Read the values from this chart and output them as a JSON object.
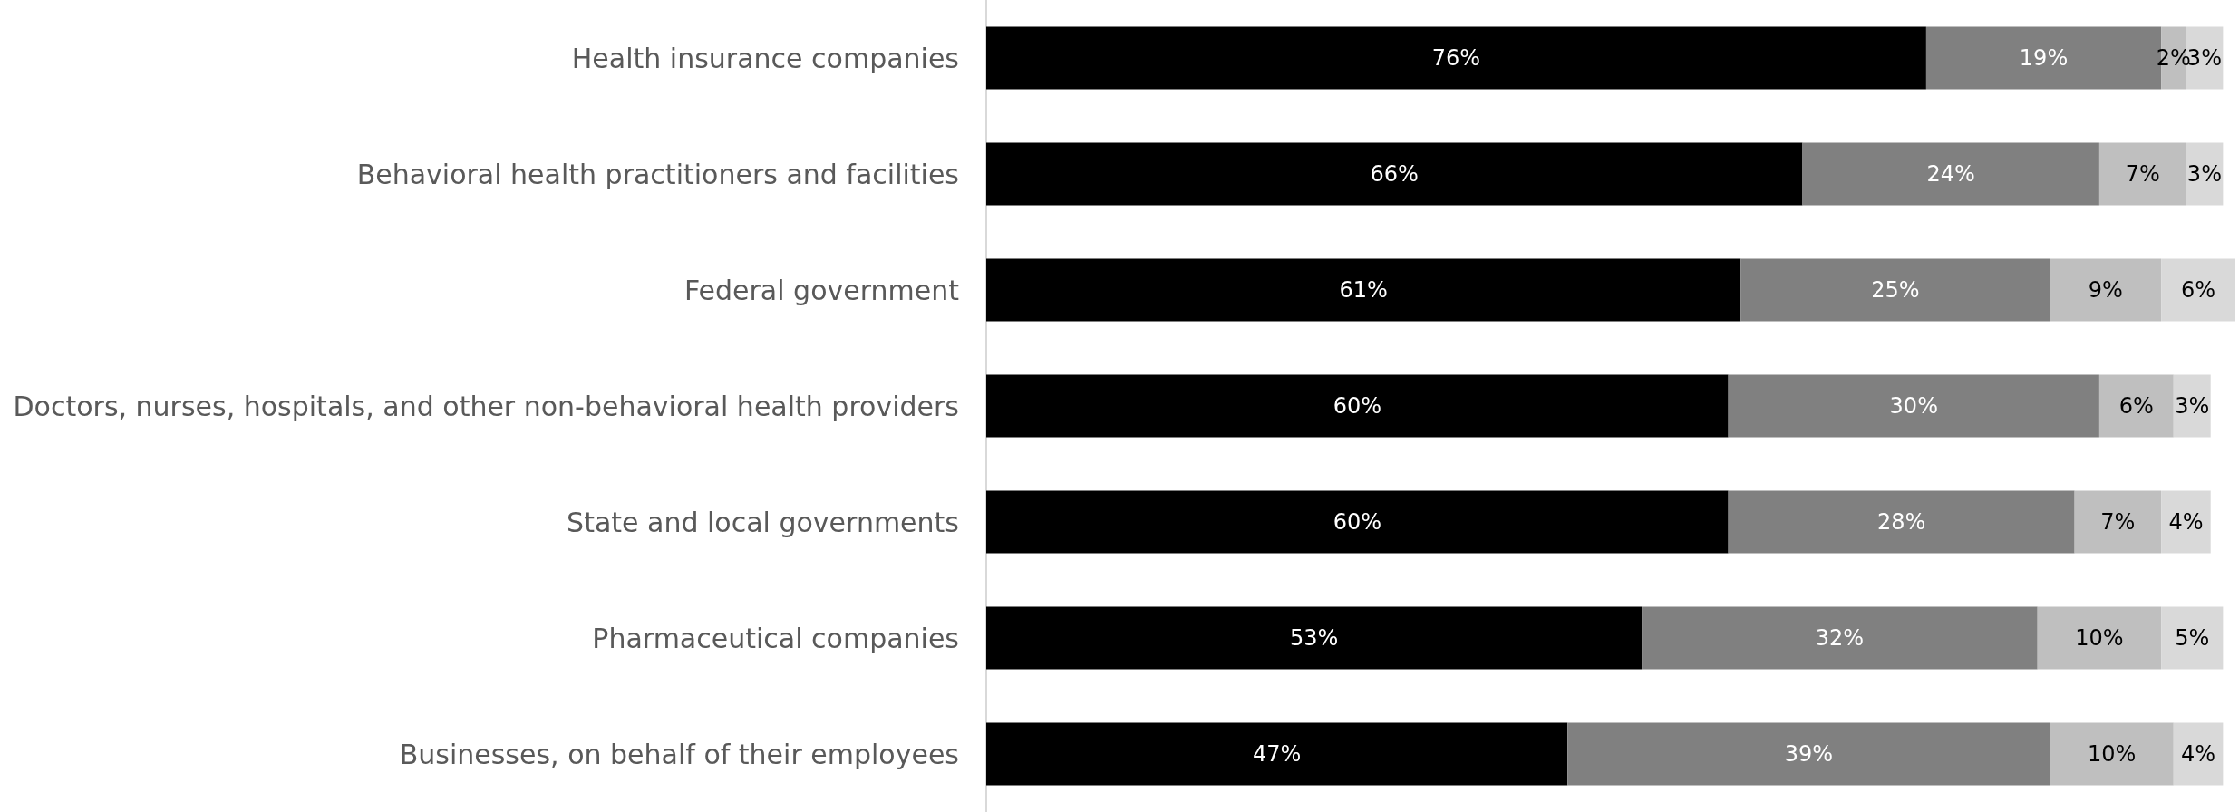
{
  "chart_data": {
    "type": "bar",
    "orientation": "horizontal",
    "stacked": true,
    "categories": [
      "Health insurance companies",
      "Behavioral health practitioners and facilities",
      "Federal government",
      "Doctors, nurses, hospitals, and other non-behavioral health providers",
      "State and local governments",
      "Pharmaceutical companies",
      "Businesses, on behalf of their employees"
    ],
    "series": [
      {
        "color": "#000000",
        "values": [
          76,
          66,
          61,
          60,
          60,
          53,
          47
        ],
        "value_labels": [
          "76%",
          "66%",
          "61%",
          "60%",
          "60%",
          "53%",
          "47%"
        ]
      },
      {
        "color": "#808080",
        "values": [
          19,
          24,
          25,
          30,
          28,
          32,
          39
        ],
        "value_labels": [
          "19%",
          "24%",
          "25%",
          "30%",
          "28%",
          "32%",
          "39%"
        ]
      },
      {
        "color": "#bfbfbf",
        "values": [
          2,
          7,
          9,
          6,
          7,
          10,
          10
        ],
        "value_labels": [
          "2%",
          "7%",
          "9%",
          "6%",
          "7%",
          "10%",
          "10%"
        ]
      },
      {
        "color": "#d9d9d9",
        "values": [
          3,
          3,
          6,
          3,
          4,
          5,
          4
        ],
        "value_labels": [
          "3%",
          "3%",
          "6%",
          "3%",
          "4%",
          "5%",
          "4%"
        ]
      }
    ]
  }
}
